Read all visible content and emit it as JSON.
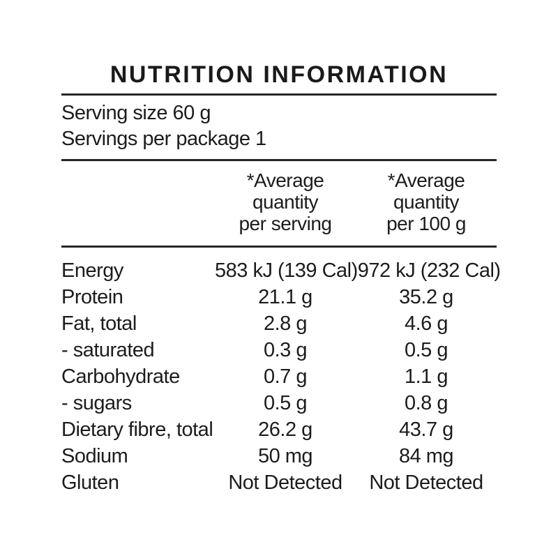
{
  "title": "NUTRITION INFORMATION",
  "serving": {
    "size_line": "Serving size 60 g",
    "per_package_line": "Servings per package 1"
  },
  "columns": [
    {
      "lines": [
        "*Average",
        "quantity",
        "per serving"
      ]
    },
    {
      "lines": [
        "*Average",
        "quantity",
        "per 100 g"
      ]
    }
  ],
  "rows": [
    {
      "label": "Energy",
      "per_serving": "583 kJ (139 Cal)",
      "per_100g": "972 kJ (232 Cal)"
    },
    {
      "label": "Protein",
      "per_serving": "21.1 g",
      "per_100g": "35.2 g"
    },
    {
      "label": "Fat, total",
      "per_serving": "2.8 g",
      "per_100g": "4.6 g"
    },
    {
      "label": "- saturated",
      "per_serving": "0.3 g",
      "per_100g": "0.5 g"
    },
    {
      "label": "Carbohydrate",
      "per_serving": "0.7 g",
      "per_100g": "1.1 g"
    },
    {
      "label": "- sugars",
      "per_serving": "0.5 g",
      "per_100g": "0.8 g"
    },
    {
      "label": "Dietary fibre, total",
      "per_serving": "26.2 g",
      "per_100g": "43.7 g"
    },
    {
      "label": "Sodium",
      "per_serving": "50 mg",
      "per_100g": "84 mg"
    },
    {
      "label": "Gluten",
      "per_serving": "Not Detected",
      "per_100g": "Not Detected"
    }
  ],
  "colors": {
    "text": "#1c1c1c",
    "rule": "#262626",
    "background": "#ffffff"
  }
}
